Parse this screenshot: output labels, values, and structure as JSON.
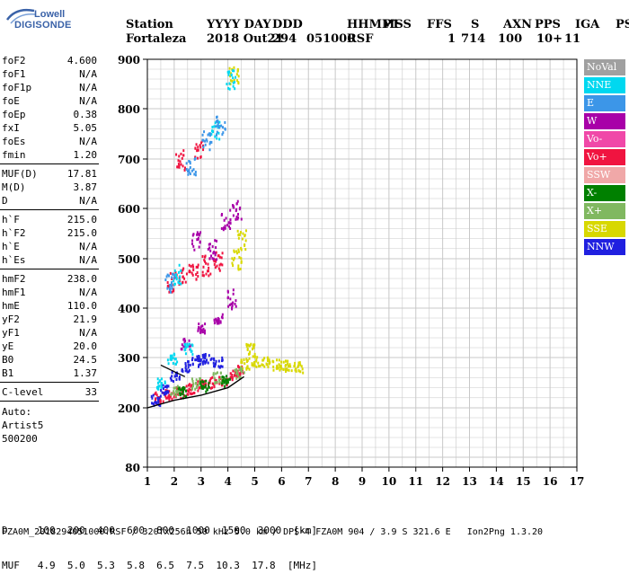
{
  "logo": {
    "line1": "Lowell",
    "line2": "DIGISONDE"
  },
  "header": {
    "labels": [
      "Station",
      "YYYY DAY",
      "DDD",
      "HHMMSS",
      "P1",
      "FFS",
      "S",
      "AXN",
      "PPS",
      "IGA",
      "PS"
    ],
    "values": [
      "Fortaleza",
      "2018 Out21",
      "294",
      "051000",
      "RSF",
      "",
      "1",
      "714",
      "100",
      "10+",
      "11"
    ]
  },
  "params": [
    {
      "name": "foF2",
      "value": "4.600"
    },
    {
      "name": "foF1",
      "value": "N/A"
    },
    {
      "name": "foF1p",
      "value": "N/A"
    },
    {
      "name": "foE",
      "value": "N/A"
    },
    {
      "name": "foEp",
      "value": "0.38"
    },
    {
      "name": "fxI",
      "value": "5.05"
    },
    {
      "name": "foEs",
      "value": "N/A"
    },
    {
      "name": "fmin",
      "value": "1.20"
    },
    {
      "sep": true
    },
    {
      "name": "MUF(D)",
      "value": "17.81"
    },
    {
      "name": "M(D)",
      "value": "3.87"
    },
    {
      "name": "D",
      "value": "N/A"
    },
    {
      "sep": true
    },
    {
      "name": "h`F",
      "value": "215.0"
    },
    {
      "name": "h`F2",
      "value": "215.0"
    },
    {
      "name": "h`E",
      "value": "N/A"
    },
    {
      "name": "h`Es",
      "value": "N/A"
    },
    {
      "sep": true
    },
    {
      "name": "hmF2",
      "value": "238.0"
    },
    {
      "name": "hmF1",
      "value": "N/A"
    },
    {
      "name": "hmE",
      "value": "110.0"
    },
    {
      "name": "yF2",
      "value": "21.9"
    },
    {
      "name": "yF1",
      "value": "N/A"
    },
    {
      "name": "yE",
      "value": "20.0"
    },
    {
      "name": "B0",
      "value": "24.5"
    },
    {
      "name": "B1",
      "value": "1.37"
    },
    {
      "sep": true
    },
    {
      "name": "C-level",
      "value": "33"
    },
    {
      "sep": true
    }
  ],
  "auto": {
    "line1": "Auto:",
    "line2": "Artist5",
    "line3": "500200"
  },
  "legend": [
    {
      "label": "NoVal",
      "color": "#a0a0a0"
    },
    {
      "label": "NNE",
      "color": "#00d8f0"
    },
    {
      "label": "E",
      "color": "#3c96e8"
    },
    {
      "label": "W",
      "color": "#a800a8"
    },
    {
      "label": "Vo-",
      "color": "#f048a8"
    },
    {
      "label": "Vo+",
      "color": "#f01440"
    },
    {
      "label": "SSW",
      "color": "#f0a8a8"
    },
    {
      "label": "X-",
      "color": "#008000"
    },
    {
      "label": "X+",
      "color": "#80b860"
    },
    {
      "label": "SSE",
      "color": "#d8d800"
    },
    {
      "label": "NNW",
      "color": "#2020e0"
    }
  ],
  "bottom": {
    "row1": "D     100  200  400  600  800  1000  1500  3000  [km]",
    "row2": "MUF   4.9  5.0  5.3  5.8  6.5  7.5  10.3  17.8  [MHz]"
  },
  "footer": "FZA0M_2018294051000.RSF / 320fx256h 50 kHz 5.0 km / DPS-4 FZA0M 904 / 3.9 S 321.6 E   Ion2Png 1.3.20",
  "chart_data": {
    "type": "scatter",
    "title": "",
    "xlabel": "",
    "ylabel": "",
    "xlim": [
      1,
      17
    ],
    "ylim": [
      80,
      900
    ],
    "x_ticks": [
      1,
      2,
      3,
      4,
      5,
      6,
      7,
      8,
      9,
      10,
      11,
      12,
      13,
      14,
      15,
      16,
      17
    ],
    "y_ticks": [
      80,
      200,
      300,
      400,
      500,
      600,
      700,
      800,
      900
    ],
    "grid": true,
    "scale": "nonlinear (h' height axis)",
    "series": [
      {
        "name": "Vo+",
        "color": "#f01440",
        "points": [
          [
            1.4,
            222
          ],
          [
            1.8,
            228
          ],
          [
            2.2,
            232
          ],
          [
            2.6,
            240
          ],
          [
            3.0,
            246
          ],
          [
            3.4,
            252
          ],
          [
            3.8,
            258
          ],
          [
            4.2,
            266
          ],
          [
            4.4,
            275
          ],
          [
            1.9,
            455
          ],
          [
            2.3,
            465
          ],
          [
            2.7,
            478
          ],
          [
            3.2,
            488
          ],
          [
            3.6,
            498
          ],
          [
            2.2,
            700
          ],
          [
            2.9,
            720
          ]
        ]
      },
      {
        "name": "SSE",
        "color": "#d8d800",
        "points": [
          [
            4.6,
            290
          ],
          [
            5.0,
            295
          ],
          [
            5.4,
            292
          ],
          [
            5.8,
            288
          ],
          [
            6.2,
            285
          ],
          [
            6.6,
            283
          ],
          [
            4.8,
            320
          ],
          [
            4.3,
            500
          ],
          [
            4.5,
            540
          ],
          [
            4.2,
            870
          ]
        ]
      },
      {
        "name": "NNW",
        "color": "#2020e0",
        "points": [
          [
            1.6,
            240
          ],
          [
            2.0,
            265
          ],
          [
            2.4,
            285
          ],
          [
            2.8,
            295
          ],
          [
            3.2,
            300
          ],
          [
            3.6,
            292
          ],
          [
            1.3,
            218
          ]
        ]
      },
      {
        "name": "W",
        "color": "#a800a8",
        "points": [
          [
            2.4,
            330
          ],
          [
            3.0,
            360
          ],
          [
            3.6,
            380
          ],
          [
            4.1,
            420
          ],
          [
            4.3,
            600
          ],
          [
            3.9,
            580
          ],
          [
            2.8,
            540
          ],
          [
            3.4,
            520
          ]
        ]
      },
      {
        "name": "NNE",
        "color": "#00d8f0",
        "points": [
          [
            1.9,
            300
          ],
          [
            2.5,
            320
          ],
          [
            4.1,
            860
          ],
          [
            3.5,
            760
          ],
          [
            2.1,
            470
          ],
          [
            1.5,
            250
          ]
        ]
      },
      {
        "name": "E",
        "color": "#3c96e8",
        "points": [
          [
            3.2,
            740
          ],
          [
            3.7,
            770
          ],
          [
            2.6,
            690
          ],
          [
            1.8,
            455
          ]
        ]
      },
      {
        "name": "X+",
        "color": "#80b860",
        "points": [
          [
            2.0,
            235
          ],
          [
            2.8,
            250
          ],
          [
            3.6,
            262
          ],
          [
            4.4,
            272
          ]
        ]
      },
      {
        "name": "X-",
        "color": "#008000",
        "points": [
          [
            2.3,
            232
          ],
          [
            3.1,
            245
          ],
          [
            3.9,
            255
          ]
        ]
      }
    ]
  }
}
